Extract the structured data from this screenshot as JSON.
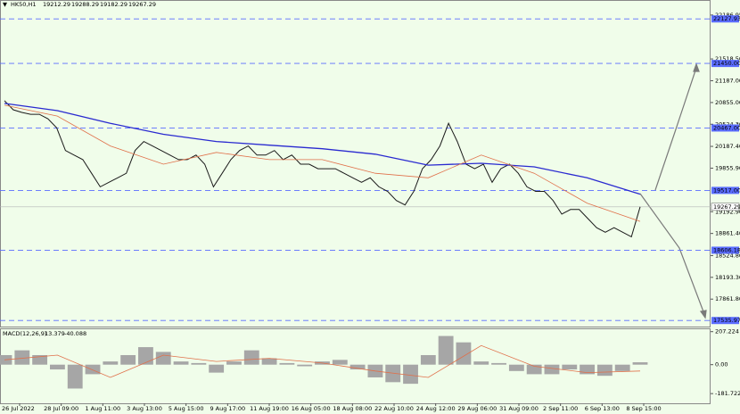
{
  "chart_data": [
    {
      "type": "line",
      "title": "HK50,H1",
      "ohlc": [
        19212.29,
        19288.29,
        19182.29,
        19267.29
      ],
      "x_labels": [
        "26 Jul 2022",
        "28 Jul 09:00",
        "1 Aug 11:00",
        "3 Aug 13:00",
        "5 Aug 15:00",
        "9 Aug 17:00",
        "11 Aug 19:00",
        "16 Aug 05:00",
        "18 Aug 08:00",
        "22 Aug 10:00",
        "24 Aug 12:00",
        "29 Aug 06:00",
        "31 Aug 09:00",
        "2 Sep 11:00",
        "6 Sep 13:00",
        "8 Sep 15:00"
      ],
      "ylim": [
        17443.8,
        22402.5
      ],
      "yticks": [
        22186.95,
        {
          "value": 21518.5,
          "label": "21518.50"
        },
        {
          "value": 21187,
          "label": "21187.00"
        },
        {
          "value": 20855,
          "label": "20855.00"
        },
        {
          "value": 20524.3,
          "label": "20524.30"
        },
        {
          "value": 20187.4,
          "label": "20187.40"
        },
        {
          "value": 19855.9,
          "label": "19855.90"
        },
        {
          "value": 19192.9,
          "label": "19192.90"
        },
        {
          "value": 18861.4,
          "label": "18861.40"
        },
        {
          "value": 18524.8,
          "label": "18524.80"
        },
        {
          "value": 18193.3,
          "label": "18193.30"
        },
        {
          "value": 17861.8,
          "label": "17861.80"
        }
      ],
      "levels": [
        22127.93,
        {
          "value": 21450,
          "label": "21450.00"
        },
        {
          "value": 20467,
          "label": "20467.00"
        },
        {
          "value": 19517,
          "label": "19517.00"
        },
        18606.18,
        17535.97
      ],
      "level_color": "#5a6cff",
      "current_price": 19267.29,
      "series": [
        {
          "color": "#1a1a1a",
          "values": [
            20883,
            20745,
            20704,
            20676,
            20676,
            20607,
            20469,
            20124,
            20055,
            19986,
            19778,
            19571,
            19640,
            19709,
            19778,
            20124,
            20262,
            20193,
            20124,
            20055,
            19986,
            19986,
            20055,
            19916,
            19571,
            19778,
            19986,
            20124,
            20193,
            20055,
            20055,
            20124,
            19986,
            20055,
            19916,
            19916,
            19847,
            19847,
            19847,
            19778,
            19709,
            19640,
            19709,
            19571,
            19502,
            19364,
            19295,
            19502,
            19847,
            19986,
            20193,
            20538,
            20262,
            19916,
            19847,
            19916,
            19640,
            19847,
            19916,
            19778,
            19571,
            19502,
            19502,
            19364,
            19156,
            19226,
            19226,
            19088,
            18949,
            18880,
            18949,
            18880,
            18811,
            19267
          ]
        },
        {
          "color": "#2a2ad0",
          "values": [
            20842,
            20731,
            20538,
            20372,
            20262,
            20206,
            20151,
            20068,
            19902,
            19930,
            19875,
            19709,
            19460
          ]
        },
        {
          "color": "#e0704a",
          "values": [
            20814,
            20648,
            20193,
            19916,
            20096,
            19986,
            19986,
            19778,
            19709,
            20055,
            19778,
            19322,
            19046
          ]
        }
      ]
    },
    {
      "type": "macd",
      "title": "MACD(12,26,9)",
      "main": 13.379,
      "signal": -40.088,
      "ylim": [
        -242.6,
        222.4
      ],
      "yticks": [
        207.224,
        {
          "value": 0,
          "label": "0.00"
        },
        -181.722
      ],
      "series": [
        {
          "type": "bar",
          "color": "#a6a6a6",
          "values": [
            60,
            90,
            60,
            -30,
            -150,
            -60,
            20,
            60,
            110,
            80,
            20,
            10,
            -50,
            20,
            90,
            40,
            10,
            -10,
            20,
            30,
            -30,
            -80,
            -110,
            -120,
            60,
            180,
            140,
            20,
            10,
            -40,
            -60,
            -60,
            -30,
            -60,
            -70,
            -40,
            15
          ]
        },
        {
          "type": "line",
          "color": "#e0704a",
          "values": [
            30,
            60,
            -80,
            60,
            20,
            40,
            10,
            -40,
            -80,
            120,
            -10,
            -50,
            -40
          ]
        }
      ]
    }
  ]
}
